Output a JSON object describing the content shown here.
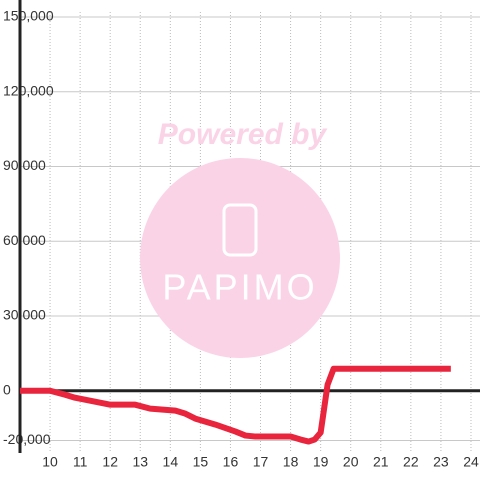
{
  "chart_data": {
    "type": "line",
    "watermark_top": "Powered by",
    "watermark_bottom": "PAPIMO",
    "xlim": [
      9,
      24.3
    ],
    "ylim": [
      -25000,
      150000
    ],
    "xticks": [
      10,
      11,
      12,
      13,
      14,
      15,
      16,
      17,
      18,
      19,
      20,
      21,
      22,
      23,
      24
    ],
    "yticks": [
      {
        "value": -20000,
        "label": "-20,000"
      },
      0,
      {
        "value": 30000,
        "label": "30,000"
      },
      {
        "value": 60000,
        "label": "60,000"
      },
      {
        "value": 90000,
        "label": "90,000"
      },
      {
        "value": 120000,
        "label": "120,000"
      },
      {
        "value": 150000,
        "label": "150,000"
      }
    ],
    "grid": true,
    "series": [
      {
        "color": "#e8253d",
        "x": [
          9,
          10,
          10.5,
          10.83,
          11.5,
          12,
          12.83,
          13.33,
          14.17,
          14.5,
          14.83,
          15.5,
          16.17,
          16.5,
          16.83,
          18,
          18.33,
          18.6,
          18.8,
          19,
          19.23,
          19.43,
          23.33
        ],
        "values": [
          0,
          0,
          -1600,
          -2800,
          -4400,
          -5600,
          -5600,
          -7200,
          -8000,
          -9200,
          -11200,
          -13600,
          -16400,
          -18000,
          -18400,
          -18400,
          -19600,
          -20400,
          -19600,
          -16800,
          2400,
          8800,
          8800
        ]
      }
    ]
  }
}
